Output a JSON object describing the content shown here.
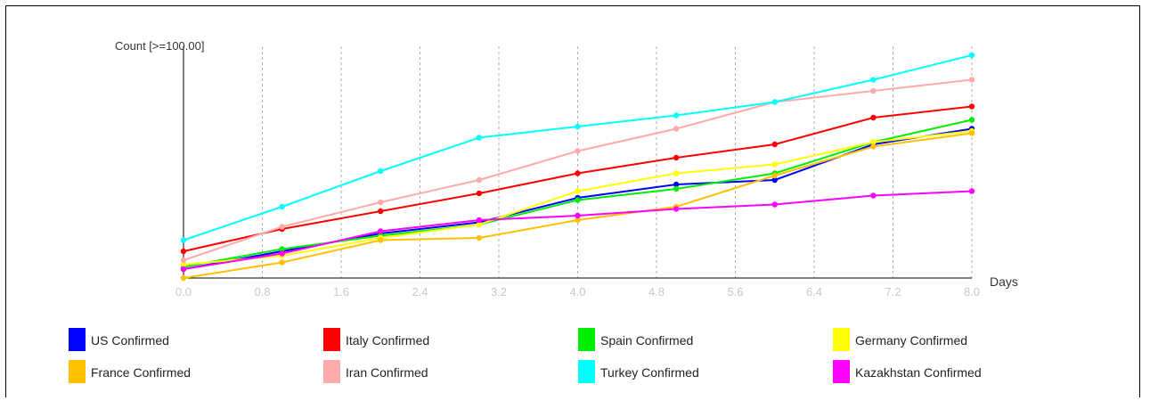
{
  "chart_data": {
    "type": "line",
    "title": "",
    "xlabel": "Days",
    "ylabel": "Count [>=100.00]",
    "xlim": [
      0,
      8
    ],
    "ylim": [
      0,
      1
    ],
    "x_ticks": [
      "0.0",
      "0.8",
      "1.6",
      "2.4",
      "3.2",
      "4.0",
      "4.8",
      "5.6",
      "6.4",
      "7.2",
      "8.0"
    ],
    "grid": "vertical",
    "legend_position": "bottom",
    "x": [
      0,
      1,
      2,
      3,
      4,
      5,
      6,
      7,
      8
    ],
    "series": [
      {
        "name": "US Confirmed",
        "color": "#0000ff",
        "values": [
          0.04,
          0.12,
          0.2,
          0.25,
          0.36,
          0.42,
          0.44,
          0.6,
          0.67
        ]
      },
      {
        "name": "Italy Confirmed",
        "color": "#ff0000",
        "values": [
          0.12,
          0.22,
          0.3,
          0.38,
          0.47,
          0.54,
          0.6,
          0.72,
          0.77
        ]
      },
      {
        "name": "Spain Confirmed",
        "color": "#00ee00",
        "values": [
          0.05,
          0.13,
          0.19,
          0.24,
          0.35,
          0.4,
          0.47,
          0.61,
          0.71
        ]
      },
      {
        "name": "Germany Confirmed",
        "color": "#ffff00",
        "values": [
          0.06,
          0.1,
          0.18,
          0.24,
          0.39,
          0.47,
          0.51,
          0.61,
          0.66
        ]
      },
      {
        "name": "France Confirmed",
        "color": "#ffc000",
        "values": [
          0.0,
          0.07,
          0.17,
          0.18,
          0.26,
          0.32,
          0.46,
          0.59,
          0.65
        ]
      },
      {
        "name": "Iran Confirmed",
        "color": "#ffaaaa",
        "values": [
          0.08,
          0.23,
          0.34,
          0.44,
          0.57,
          0.67,
          0.79,
          0.84,
          0.89
        ]
      },
      {
        "name": "Turkey Confirmed",
        "color": "#00ffff",
        "values": [
          0.17,
          0.32,
          0.48,
          0.63,
          0.68,
          0.73,
          0.79,
          0.89,
          1.0
        ]
      },
      {
        "name": "Kazakhstan Confirmed",
        "color": "#ff00ff",
        "values": [
          0.04,
          0.11,
          0.21,
          0.26,
          0.28,
          0.31,
          0.33,
          0.37,
          0.39
        ]
      }
    ]
  }
}
